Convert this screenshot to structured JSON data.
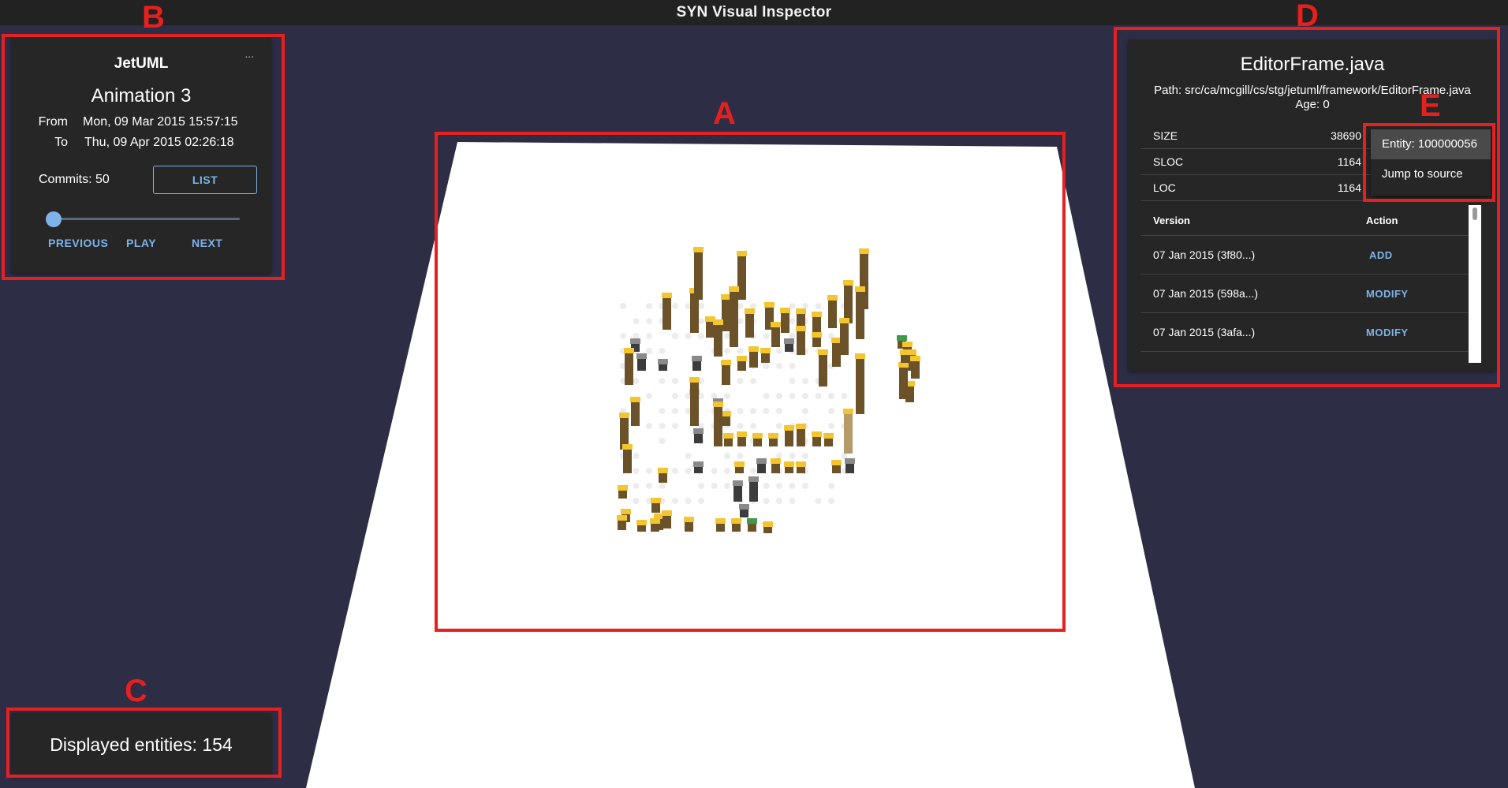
{
  "app": {
    "title": "SYN Visual Inspector"
  },
  "annotations": [
    "A",
    "B",
    "C",
    "D",
    "E"
  ],
  "project_panel": {
    "name": "JetUML",
    "more": "...",
    "animation": "Animation 3",
    "from_label": "From",
    "from_value": "Mon, 09 Mar 2015 15:57:15",
    "to_label": "To",
    "to_value": "Thu, 09 Apr 2015 02:26:18",
    "commits": "Commits: 50",
    "list_label": "LIST",
    "slider_progress": 0.0,
    "prev_label": "PREVIOUS",
    "play_label": "PLAY",
    "next_label": "NEXT"
  },
  "entities_panel": {
    "text": "Displayed entities: 154"
  },
  "file_panel": {
    "filename": "EditorFrame.java",
    "path": "Path: src/ca/mcgill/cs/stg/jetuml/framework/EditorFrame.java",
    "age": "Age: 0",
    "metrics": [
      {
        "name": "SIZE",
        "value": "38690"
      },
      {
        "name": "SLOC",
        "value": "1164"
      },
      {
        "name": "LOC",
        "value": "1164"
      }
    ],
    "version_header": "Version",
    "action_header": "Action",
    "versions": [
      {
        "version": "07 Jan 2015 (3f80...)",
        "action": "ADD"
      },
      {
        "version": "07 Jan 2015 (598a...)",
        "action": "MODIFY"
      },
      {
        "version": "07 Jan 2015 (3afa...)",
        "action": "MODIFY"
      }
    ]
  },
  "context_menu": {
    "items": [
      "Entity: 100000056",
      "Jump to source"
    ]
  },
  "colors": {
    "background": "#2d2d46",
    "panel": "#262626",
    "accent": "#7db3e8",
    "annotation": "#e61f1f",
    "bar_brown": "#6b5228",
    "bar_top_yellow": "#f2c531"
  }
}
